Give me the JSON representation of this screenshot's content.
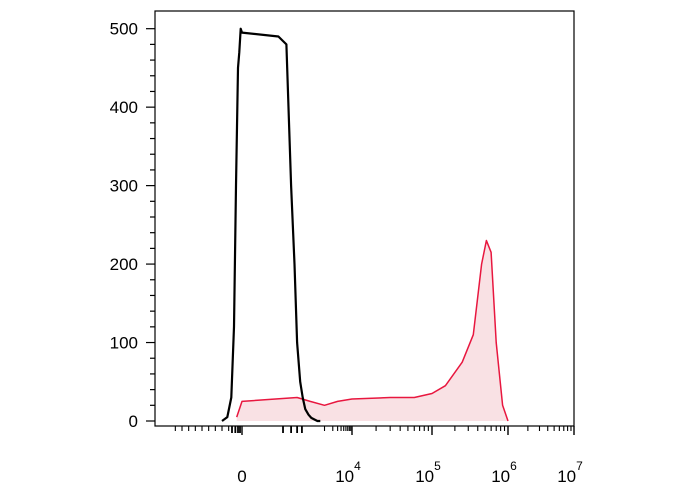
{
  "chart_data": {
    "type": "area",
    "title": "",
    "xlabel": "",
    "ylabel": "",
    "ylim": [
      0,
      520
    ],
    "x_axis": {
      "scale": "biexponential",
      "tick_labels": [
        {
          "value": 0,
          "base": "0",
          "exp": ""
        },
        {
          "value": 10000,
          "base": "10",
          "exp": "4"
        },
        {
          "value": 100000,
          "base": "10",
          "exp": "5"
        },
        {
          "value": 1000000,
          "base": "10",
          "exp": "6"
        },
        {
          "value": 10000000,
          "base": "10",
          "exp": "7"
        }
      ]
    },
    "y_axis": {
      "ticks": [
        0,
        100,
        200,
        300,
        400,
        500
      ]
    },
    "grid": false,
    "series": [
      {
        "color": "#000000",
        "fill": "none",
        "x": [
          -300,
          -220,
          -160,
          -120,
          -90,
          -60,
          -40,
          -20,
          0,
          20,
          40,
          60,
          80,
          100,
          130,
          160,
          200,
          260,
          330,
          420,
          550,
          700
        ],
        "values": [
          0,
          5,
          30,
          120,
          300,
          450,
          470,
          500,
          495,
          490,
          480,
          300,
          200,
          100,
          50,
          30,
          15,
          8,
          4,
          2,
          0,
          0
        ]
      },
      {
        "color": "#e8173f",
        "fill": "#f9e1e4",
        "x": [
          -80,
          0,
          100,
          300,
          1000,
          3000,
          10000,
          30000,
          60000,
          100000,
          150000,
          250000,
          350000,
          450000,
          520000,
          600000,
          700000,
          850000,
          1000000
        ],
        "values": [
          5,
          25,
          30,
          25,
          20,
          25,
          28,
          30,
          30,
          35,
          45,
          75,
          110,
          200,
          230,
          215,
          100,
          20,
          0
        ]
      }
    ]
  }
}
